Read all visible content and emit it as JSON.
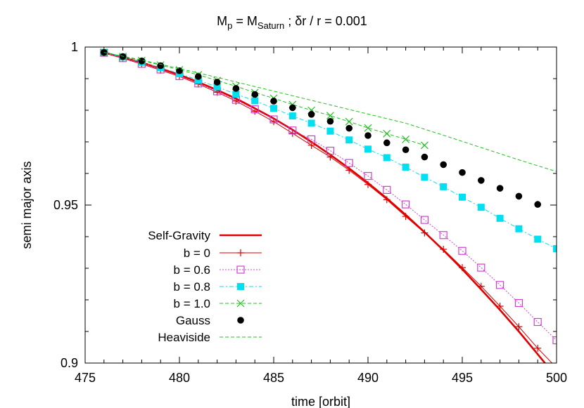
{
  "chart_data": {
    "type": "line",
    "title": "M_p = M_Saturn ; δr / r = 0.001",
    "title_parts": {
      "m": "M",
      "p_sub": "p",
      "equals": " = M",
      "saturn_sub": "Saturn",
      "rest": "  ;   δr / r = 0.001"
    },
    "xlabel": "time [orbit]",
    "ylabel": "semi major axis",
    "xlim": [
      475,
      500
    ],
    "ylim": [
      0.9,
      1.0
    ],
    "xticks": [
      475,
      480,
      485,
      490,
      495,
      500
    ],
    "yticks": [
      0.9,
      0.95,
      1.0
    ],
    "xtick_labels": [
      "475",
      "480",
      "485",
      "490",
      "495",
      "500"
    ],
    "ytick_labels": [
      "0.9",
      "0.95",
      "1"
    ],
    "grid": false,
    "legend_position": "bottom-left",
    "series": [
      {
        "name": "Self-Gravity",
        "style": "line",
        "color": "#e00000",
        "x": [
          476,
          477,
          478,
          479,
          480,
          481,
          482,
          483,
          484,
          485,
          486,
          487,
          488,
          489,
          490,
          491,
          492,
          493,
          494,
          495,
          496,
          497,
          498,
          499,
          500
        ],
        "y": [
          0.9983,
          0.9967,
          0.9951,
          0.9932,
          0.9912,
          0.9889,
          0.9864,
          0.9837,
          0.9806,
          0.9774,
          0.9738,
          0.97,
          0.9659,
          0.9616,
          0.957,
          0.9521,
          0.9469,
          0.9414,
          0.9357,
          0.9297,
          0.9233,
          0.9168,
          0.91,
          0.9028,
          0.8955
        ]
      },
      {
        "name": "b = 0",
        "style": "linespoints",
        "marker": "plus",
        "color": "#e00000",
        "x": [
          476,
          477,
          478,
          479,
          480,
          481,
          482,
          483,
          484,
          485,
          486,
          487,
          488,
          489,
          490,
          491,
          492,
          493,
          494,
          495,
          496,
          497,
          498,
          499,
          500
        ],
        "y": [
          0.9981,
          0.9964,
          0.9946,
          0.9927,
          0.9907,
          0.9883,
          0.9857,
          0.9829,
          0.9797,
          0.9764,
          0.9727,
          0.9689,
          0.9652,
          0.961,
          0.9565,
          0.9517,
          0.9464,
          0.9412,
          0.936,
          0.9302,
          0.9243,
          0.918,
          0.9115,
          0.9047,
          0.8985
        ]
      },
      {
        "name": "b = 0.6",
        "style": "linespoints",
        "marker": "open-square",
        "color": "#d040d0",
        "x": [
          476,
          477,
          478,
          479,
          480,
          481,
          482,
          483,
          484,
          485,
          486,
          487,
          488,
          489,
          490,
          491,
          492,
          493,
          494,
          495,
          496,
          497,
          498,
          499,
          500
        ],
        "y": [
          0.9982,
          0.9965,
          0.9947,
          0.9929,
          0.9908,
          0.9885,
          0.986,
          0.9833,
          0.9803,
          0.9771,
          0.9736,
          0.9708,
          0.9672,
          0.9633,
          0.9592,
          0.9548,
          0.9502,
          0.9453,
          0.9405,
          0.9355,
          0.9302,
          0.9247,
          0.919,
          0.913,
          0.9072
        ]
      },
      {
        "name": "b = 0.8",
        "style": "linespoints",
        "marker": "filled-square",
        "color": "#00e0f0",
        "x": [
          476,
          477,
          478,
          479,
          480,
          481,
          482,
          483,
          484,
          485,
          486,
          487,
          488,
          489,
          490,
          491,
          492,
          493,
          494,
          495,
          496,
          497,
          498,
          499,
          500
        ],
        "y": [
          0.9983,
          0.9968,
          0.9952,
          0.9935,
          0.9916,
          0.9895,
          0.9874,
          0.9851,
          0.983,
          0.9806,
          0.9782,
          0.9759,
          0.9734,
          0.9706,
          0.9677,
          0.965,
          0.962,
          0.9588,
          0.9558,
          0.9525,
          0.9493,
          0.9458,
          0.9425,
          0.9392,
          0.9362
        ]
      },
      {
        "name": "b = 1.0",
        "style": "linespoints",
        "marker": "cross",
        "color": "#20c020",
        "x": [
          476,
          477,
          478,
          479,
          480,
          481,
          482,
          483,
          484,
          485,
          486,
          487,
          488,
          489,
          490,
          491,
          492,
          493
        ],
        "y": [
          0.9983,
          0.997,
          0.9957,
          0.9943,
          0.9928,
          0.9912,
          0.9894,
          0.9876,
          0.9856,
          0.9838,
          0.9818,
          0.98,
          0.9783,
          0.9764,
          0.9744,
          0.9726,
          0.9708,
          0.9689
        ]
      },
      {
        "name": "Gauss",
        "style": "points",
        "marker": "filled-circle",
        "color": "#000000",
        "x": [
          476,
          477,
          478,
          479,
          480,
          481,
          482,
          483,
          484,
          485,
          486,
          487,
          488,
          489,
          490,
          491,
          492,
          493,
          494,
          495,
          496,
          497,
          498,
          499
        ],
        "y": [
          0.9983,
          0.997,
          0.9956,
          0.9941,
          0.9925,
          0.9907,
          0.9889,
          0.9869,
          0.985,
          0.9829,
          0.9808,
          0.9787,
          0.9765,
          0.9743,
          0.972,
          0.9697,
          0.9675,
          0.9652,
          0.9628,
          0.9603,
          0.9578,
          0.9553,
          0.9528,
          0.9502
        ]
      },
      {
        "name": "Heaviside",
        "style": "line",
        "dash": "dashed",
        "color": "#20c020",
        "x": [
          476,
          478,
          480,
          482,
          484,
          486,
          488,
          490,
          492,
          494,
          496,
          498,
          500
        ],
        "y": [
          0.9983,
          0.9959,
          0.9932,
          0.9904,
          0.9875,
          0.9846,
          0.9817,
          0.9788,
          0.9759,
          0.9721,
          0.9682,
          0.9643,
          0.9606
        ]
      }
    ]
  }
}
